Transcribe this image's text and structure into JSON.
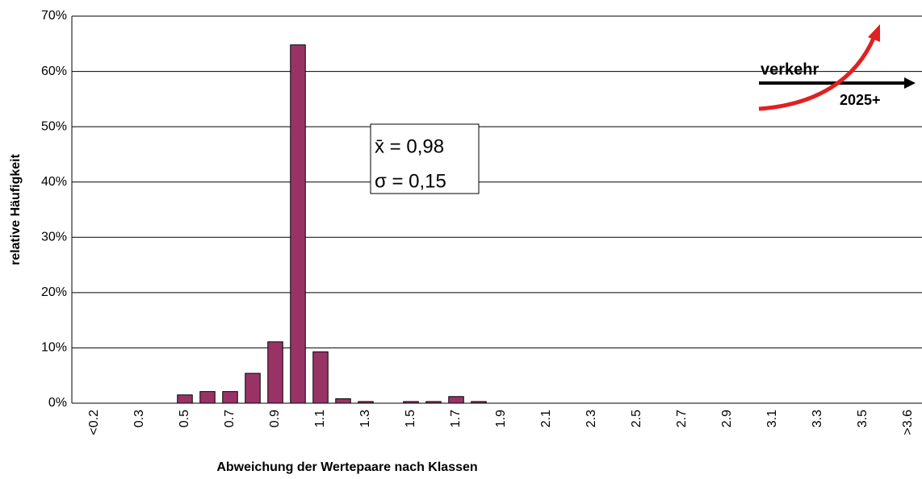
{
  "chart_data": {
    "type": "bar",
    "xlabel": "Abweichung der Wertepaare nach Klassen",
    "ylabel": "relative Häufigkeit",
    "annotations": [
      "x̄ = 0,98",
      "σ = 0,15"
    ],
    "logo": [
      "verkehr",
      "2025+"
    ],
    "categories": [
      "<0.2",
      null,
      "0.3",
      null,
      "0.5",
      null,
      "0.7",
      null,
      "0.9",
      null,
      "1.1",
      null,
      "1.3",
      null,
      "1.5",
      null,
      "1.7",
      null,
      "1.9",
      null,
      "2.1",
      null,
      "2.3",
      null,
      "2.5",
      null,
      "2.7",
      null,
      "2.9",
      null,
      "3.1",
      null,
      "3.3",
      null,
      "3.5",
      null,
      ">3.6"
    ],
    "values": [
      0,
      0,
      0,
      0,
      1.5,
      2.1,
      2.1,
      5.4,
      11.1,
      64.8,
      9.3,
      0.8,
      0.3,
      0,
      0.3,
      0.3,
      1.2,
      0.3,
      0,
      0,
      0,
      0,
      0,
      0,
      0,
      0,
      0,
      0,
      0,
      0,
      0,
      0,
      0,
      0,
      0,
      0,
      0
    ],
    "color": "#993366",
    "ylim": [
      0,
      70
    ],
    "yticks": [
      {
        "value": 0,
        "label": "0%"
      },
      {
        "value": 10,
        "label": "10%"
      },
      {
        "value": 20,
        "label": "20%"
      },
      {
        "value": 30,
        "label": "30%"
      },
      {
        "value": 40,
        "label": "40%"
      },
      {
        "value": 50,
        "label": "50%"
      },
      {
        "value": 60,
        "label": "60%"
      },
      {
        "value": 70,
        "label": "70%"
      }
    ],
    "grid": true
  }
}
